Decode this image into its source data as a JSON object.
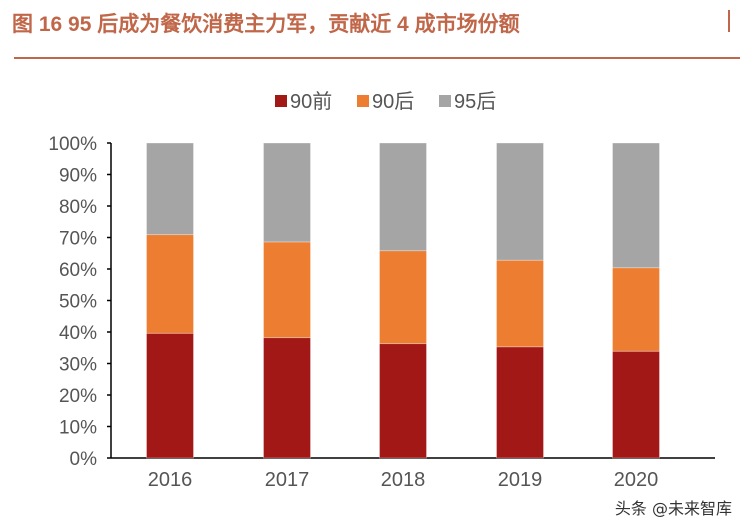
{
  "title": "图 16 95 后成为餐饮消费主力军，贡献近 4 成市场份额",
  "watermark": "头条 @未来智库",
  "chart_data": {
    "type": "bar",
    "stacked": true,
    "title": "",
    "xlabel": "",
    "ylabel": "",
    "categories": [
      "2016",
      "2017",
      "2018",
      "2019",
      "2020"
    ],
    "ylim": [
      0,
      100
    ],
    "yticks": [
      "0%",
      "10%",
      "20%",
      "30%",
      "40%",
      "50%",
      "60%",
      "70%",
      "80%",
      "90%",
      "100%"
    ],
    "legend_position": "top",
    "grid": false,
    "series": [
      {
        "name": "90前",
        "color": "#a11816",
        "values": [
          39.6,
          38.2,
          36.3,
          35.3,
          33.9
        ]
      },
      {
        "name": "90后",
        "color": "#ed7d31",
        "values": [
          31.3,
          30.4,
          29.5,
          27.5,
          26.5
        ]
      },
      {
        "name": "95后",
        "color": "#a5a5a5",
        "values": [
          29.1,
          31.4,
          34.2,
          37.2,
          39.6
        ]
      }
    ]
  }
}
